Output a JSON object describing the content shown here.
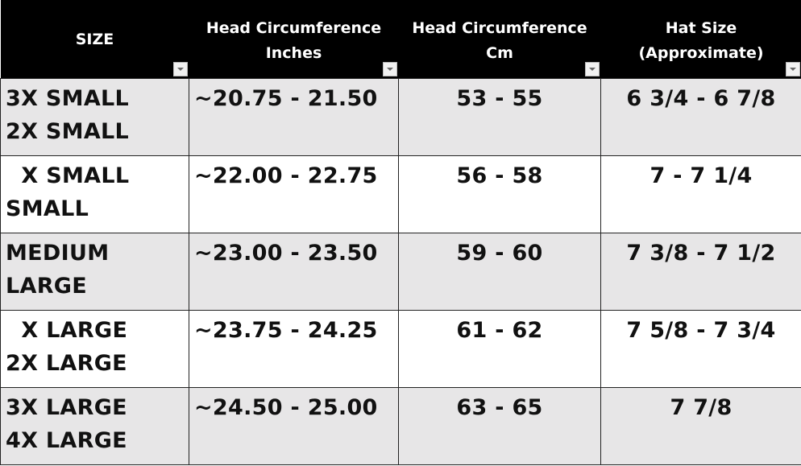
{
  "headers": [
    {
      "label": "SIZE"
    },
    {
      "label": "Head Circumference Inches"
    },
    {
      "label": "Head Circumference Cm"
    },
    {
      "label": "Hat Size (Approximate)"
    }
  ],
  "rows": [
    {
      "size": [
        "3X SMALL",
        "2X SMALL"
      ],
      "inches": "~20.75 - 21.50",
      "cm": "53 - 55",
      "hat": "6 3/4 - 6 7/8"
    },
    {
      "size": [
        "  X SMALL",
        "SMALL"
      ],
      "inches": "~22.00 - 22.75",
      "cm": "56 - 58",
      "hat": "7 - 7 1/4"
    },
    {
      "size": [
        "MEDIUM",
        "LARGE"
      ],
      "inches": "~23.00 - 23.50",
      "cm": "59 - 60",
      "hat": "7 3/8 - 7 1/2"
    },
    {
      "size": [
        "  X LARGE",
        "2X LARGE"
      ],
      "inches": "~23.75 - 24.25",
      "cm": "61 - 62",
      "hat": "7 5/8 - 7 3/4"
    },
    {
      "size": [
        "3X LARGE",
        "4X LARGE"
      ],
      "inches": "~24.50 - 25.00",
      "cm": "63 - 65",
      "hat": "7 7/8"
    }
  ],
  "colors": {
    "header_bg": "#000000",
    "header_text": "#ffffff",
    "row_alt": "#e7e6e7",
    "row": "#ffffff"
  },
  "icons": {
    "filter": "filter-dropdown-icon"
  }
}
